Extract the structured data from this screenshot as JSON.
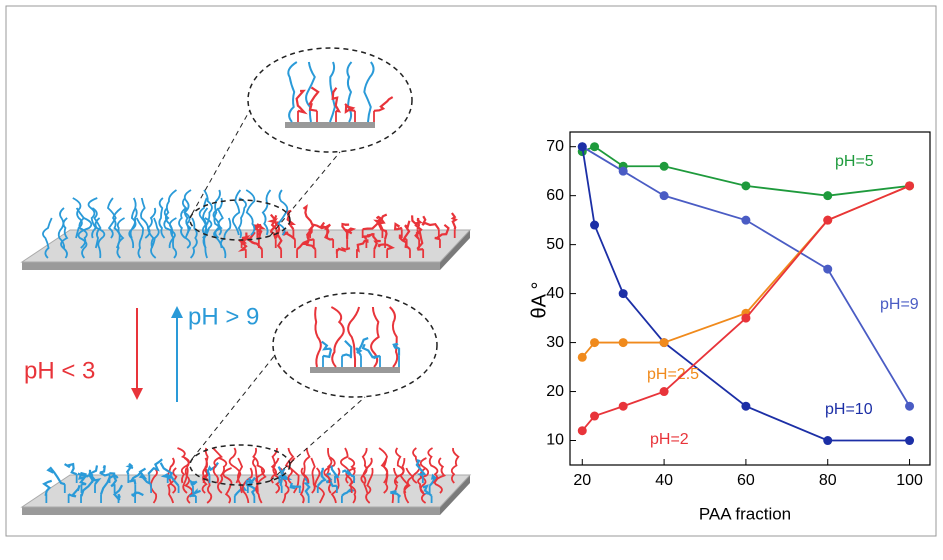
{
  "schematic": {
    "label_up": "pH > 9",
    "label_down": "pH < 3"
  },
  "chart_data": {
    "type": "line",
    "xlabel": "PAA fraction",
    "ylabel": "θA °",
    "xlim": [
      17,
      105
    ],
    "ylim": [
      5,
      73
    ],
    "xticks": [
      20,
      40,
      60,
      80,
      100
    ],
    "yticks": [
      10,
      20,
      30,
      40,
      50,
      60,
      70
    ],
    "series": [
      {
        "name": "pH=5",
        "color": "#1e9a3c",
        "x": [
          20,
          23,
          30,
          40,
          60,
          80,
          100
        ],
        "values": [
          69,
          70,
          66,
          66,
          62,
          60,
          62
        ]
      },
      {
        "name": "pH=9",
        "color": "#4a5cc4",
        "x": [
          20,
          30,
          40,
          60,
          80,
          100
        ],
        "values": [
          70,
          65,
          60,
          55,
          45,
          17
        ]
      },
      {
        "name": "pH=10",
        "color": "#1c2fa6",
        "x": [
          20,
          23,
          30,
          40,
          60,
          80,
          100
        ],
        "values": [
          70,
          54,
          40,
          30,
          17,
          10,
          10
        ]
      },
      {
        "name": "pH=2.5",
        "color": "#f08a1c",
        "x": [
          20,
          23,
          30,
          40,
          60,
          80,
          100
        ],
        "values": [
          27,
          30,
          30,
          30,
          36,
          55,
          62
        ]
      },
      {
        "name": "pH=2",
        "color": "#e8343a",
        "x": [
          20,
          23,
          30,
          40,
          60,
          80,
          100
        ],
        "values": [
          12,
          15,
          17,
          20,
          35,
          55,
          62
        ]
      }
    ]
  }
}
